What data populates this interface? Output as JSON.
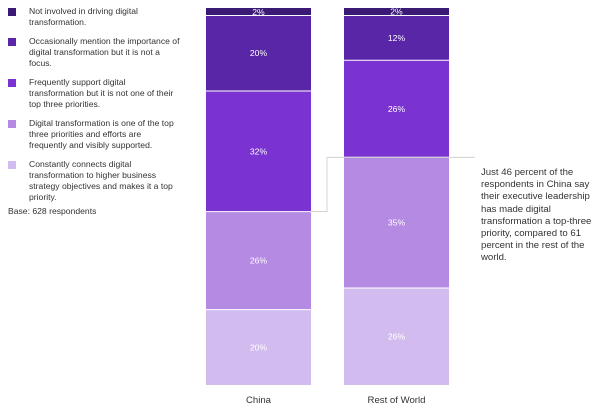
{
  "legend": {
    "items": [
      {
        "label": "Not involved in driving digital transformation.",
        "color": "#3b1a75"
      },
      {
        "label": "Occasionally mention the importance of digital transformation but it is not a focus.",
        "color": "#5826a6"
      },
      {
        "label": "Frequently support digital transformation but it is not one of their top three priorities.",
        "color": "#7a33d1"
      },
      {
        "label": "Digital transformation is one of the top three priorities and efforts are frequently and visibly supported.",
        "color": "#b58ae3"
      },
      {
        "label": "Constantly connects digital transformation to higher business strategy objectives and makes it a top priority.",
        "color": "#d2bcef"
      }
    ]
  },
  "base_note": "Base: 628 respondents",
  "annotation": "Just 46 percent of the respondents in China say their executive leadership has made digital transformation a top-three priority, compared to 61 percent in the rest of the world.",
  "chart_data": {
    "type": "bar",
    "stacked": true,
    "normalized_percent": true,
    "categories": [
      "China",
      "Rest of World"
    ],
    "series": [
      {
        "name": "Not involved in driving digital transformation.",
        "values": [
          2,
          2
        ],
        "labels": [
          "2%",
          "2%"
        ]
      },
      {
        "name": "Occasionally mention the importance of digital transformation but it is not a focus.",
        "values": [
          20,
          12
        ],
        "labels": [
          "20%",
          "12%"
        ]
      },
      {
        "name": "Frequently support digital transformation but it is not one of their top three priorities.",
        "values": [
          32,
          26
        ],
        "labels": [
          "32%",
          "26%"
        ]
      },
      {
        "name": "Digital transformation is one of the top three priorities and efforts are frequently and visibly supported.",
        "values": [
          26,
          35
        ],
        "labels": [
          "26%",
          "35%"
        ]
      },
      {
        "name": "Constantly connects digital transformation to higher business strategy objectives and makes it a top priority.",
        "values": [
          20,
          26
        ],
        "labels": [
          "20%",
          "26%"
        ]
      }
    ],
    "legend_position": "left",
    "grid": false
  }
}
